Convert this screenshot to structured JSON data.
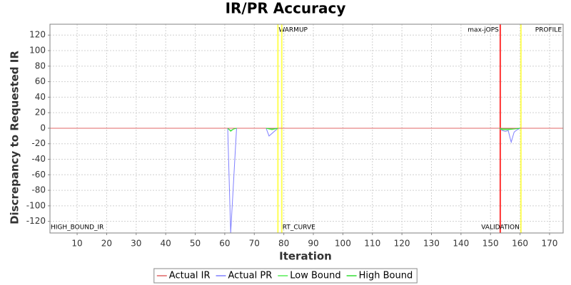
{
  "chart_data": {
    "type": "line",
    "title": "IR/PR Accuracy",
    "x_label": "Iteration",
    "y_label": "Discrepancy to Requested IR",
    "xlim": [
      0.8,
      174.6
    ],
    "ylim": [
      -135,
      134
    ],
    "xticks": [
      10,
      20,
      30,
      40,
      50,
      60,
      70,
      80,
      90,
      100,
      110,
      120,
      130,
      140,
      150,
      160,
      170
    ],
    "yticks": [
      -120,
      -100,
      -80,
      -60,
      -40,
      -20,
      0,
      20,
      40,
      60,
      80,
      100,
      120
    ],
    "grid": true,
    "legend": "bottom",
    "series": [
      {
        "name": "Actual IR",
        "color": "#e06666",
        "x": [
          0.8,
          174.6
        ],
        "values": [
          0,
          0
        ]
      },
      {
        "name": "Actual PR",
        "color": "#8080ff",
        "x": [
          61,
          62,
          64,
          70,
          74,
          75,
          78,
          120,
          153,
          154,
          155,
          156,
          157,
          158,
          159,
          160
        ],
        "values": [
          0,
          -135,
          0,
          null,
          0,
          -10,
          0,
          null,
          0,
          -3,
          -4,
          -3,
          -18,
          -5,
          -2,
          0
        ]
      },
      {
        "name": "Low Bound",
        "color": "#55ee55",
        "x": [
          61,
          62,
          63,
          64,
          70,
          74,
          76,
          78,
          120,
          153,
          154,
          156,
          158,
          160
        ],
        "values": [
          0,
          -4,
          -1,
          0,
          null,
          0,
          -2,
          0,
          null,
          0,
          -2,
          -2,
          -1,
          0
        ]
      },
      {
        "name": "High Bound",
        "color": "#33dd33",
        "x": [
          61,
          62,
          63,
          64,
          70,
          74,
          76,
          78,
          120,
          153,
          154,
          156,
          158,
          160
        ],
        "values": [
          0,
          -3,
          -1,
          0,
          null,
          0,
          -1,
          0,
          null,
          0,
          -1,
          -1,
          -1,
          0
        ]
      }
    ],
    "markers": [
      {
        "x": 78,
        "color": "#ffff55",
        "label": "WARMUP",
        "place": "top",
        "anchor": "start"
      },
      {
        "x": 79.3,
        "color": "#ffff55",
        "label": "RT_CURVE",
        "place": "bottom",
        "anchor": "start"
      },
      {
        "x": 153.3,
        "color": "#ff3333",
        "label": "max-jOPS",
        "place": "top",
        "anchor": "end"
      },
      {
        "x": 160.3,
        "color": "#ffff55",
        "label": "VALIDATION",
        "place": "bottom",
        "anchor": "end"
      },
      {
        "x": 174.6,
        "label": "PROFILE",
        "place": "top",
        "anchor": "end"
      },
      {
        "x": 0.8,
        "label": "HIGH_BOUND_IR",
        "place": "bottom",
        "anchor": "start"
      }
    ]
  }
}
